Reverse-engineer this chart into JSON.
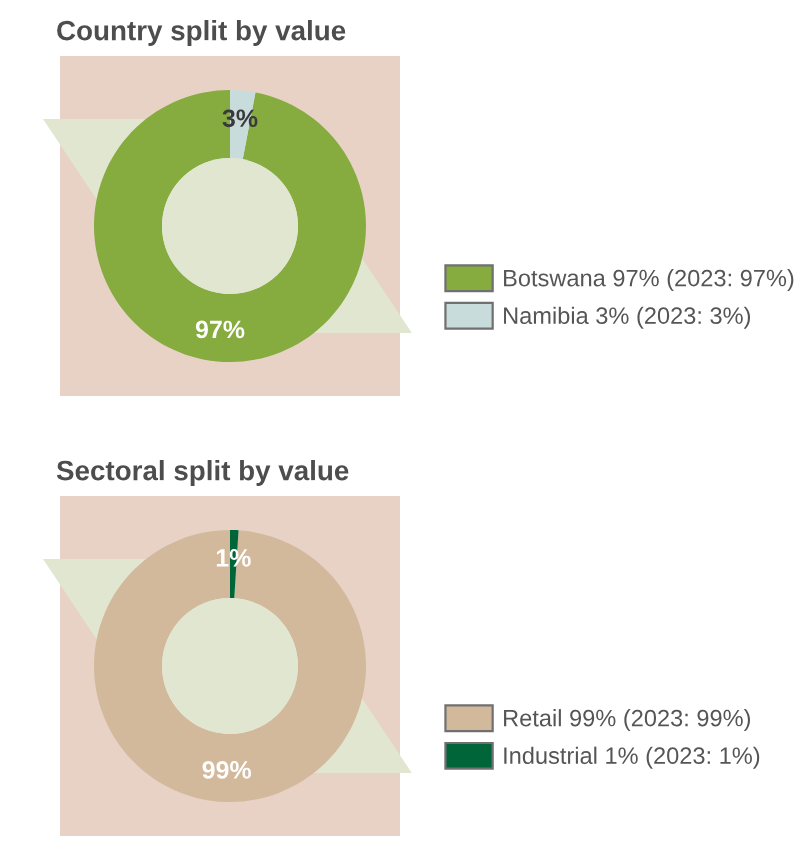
{
  "chart_data": [
    {
      "type": "donut",
      "title": "Country split by value",
      "categories": [
        "Botswana 97% (2023: 97%)",
        "Namibia 3% (2023: 3%)"
      ],
      "values": [
        97,
        3
      ],
      "colors": [
        "#86ab3f",
        "#c9dcdc"
      ],
      "value_labels": [
        "97%",
        "3%"
      ],
      "legend": "bottom right"
    },
    {
      "type": "donut",
      "title": "Sectoral split by value",
      "categories": [
        "Retail 99% (2023: 99%)",
        "Industrial 1% (2023: 1%)"
      ],
      "values": [
        99,
        1
      ],
      "colors": [
        "#d3b99c",
        "#00663a"
      ],
      "value_labels": [
        "99%",
        "1%"
      ],
      "legend": "bottom right"
    }
  ]
}
